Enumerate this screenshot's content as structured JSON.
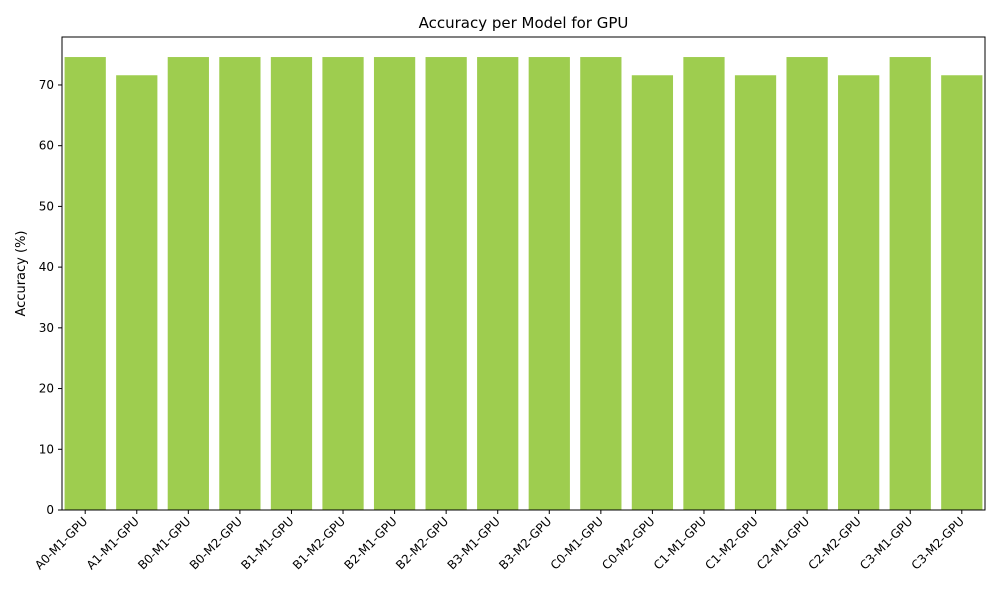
{
  "chart_data": {
    "type": "bar",
    "title": "Accuracy per Model for GPU",
    "xlabel": "",
    "ylabel": "Accuracy (%)",
    "ylim": [
      0,
      77.9
    ],
    "yticks": [
      0,
      10,
      20,
      30,
      40,
      50,
      60,
      70
    ],
    "grid": false,
    "bar_color": "#9ecd4f",
    "categories": [
      "A0-M1-GPU",
      "A1-M1-GPU",
      "B0-M1-GPU",
      "B0-M2-GPU",
      "B1-M1-GPU",
      "B1-M2-GPU",
      "B2-M1-GPU",
      "B2-M2-GPU",
      "B3-M1-GPU",
      "B3-M2-GPU",
      "C0-M1-GPU",
      "C0-M2-GPU",
      "C1-M1-GPU",
      "C1-M2-GPU",
      "C2-M1-GPU",
      "C2-M2-GPU",
      "C3-M1-GPU",
      "C3-M2-GPU"
    ],
    "values": [
      74.6,
      71.6,
      74.6,
      74.6,
      74.6,
      74.6,
      74.6,
      74.6,
      74.6,
      74.6,
      74.6,
      71.6,
      74.6,
      71.6,
      74.6,
      71.6,
      74.6,
      71.6
    ]
  }
}
